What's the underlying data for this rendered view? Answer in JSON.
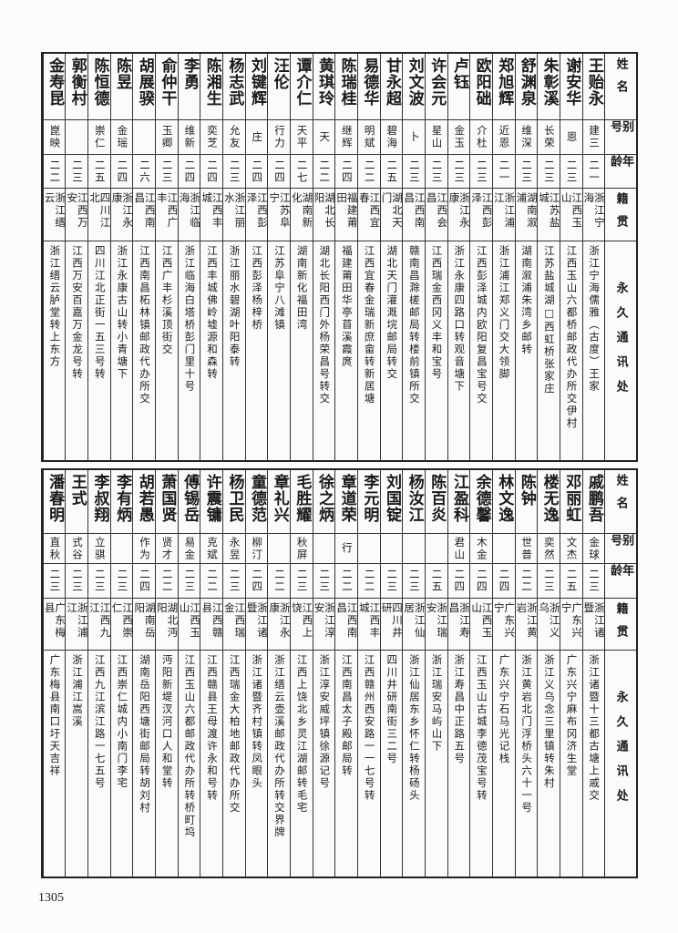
{
  "headers": {
    "name": "姓名",
    "alias": "别号",
    "age": "年龄",
    "native": "籍贯",
    "address": "永久通讯处"
  },
  "page_number": "1305",
  "tables": [
    {
      "rows": [
        {
          "name": "王贻永",
          "alias": "建三",
          "age": "二一",
          "native": "浙江宁海",
          "address": "浙江宁海儒雅（古度）王家"
        },
        {
          "name": "谢安华",
          "alias": "恩",
          "age": "二三",
          "native": "江西玉山",
          "address": "江西玉山六都桥邮政代办所交伊村"
        },
        {
          "name": "朱彰溪",
          "alias": "长荣",
          "age": "二三",
          "native": "江苏盐城",
          "address": "江苏盐城湖□西虹桥张家庄"
        },
        {
          "name": "舒渊泉",
          "alias": "维深",
          "age": "二三",
          "native": "湖南溆浦",
          "address": "湖南溆浦朱湾乡邮转"
        },
        {
          "name": "郑旭辉",
          "alias": "近恩",
          "age": "二一",
          "native": "浙江浦江",
          "address": "浙江浦江郑义门交大领脚"
        },
        {
          "name": "欧阳础",
          "alias": "介杜",
          "age": "二三",
          "native": "江西彭泽",
          "address": "江西彭泽城内欧阳复昌宝号交"
        },
        {
          "name": "卢钰",
          "alias": "金玉",
          "age": "二三",
          "native": "浙江永康",
          "address": "浙江永康四路口转观音塘下"
        },
        {
          "name": "许会元",
          "alias": "星山",
          "age": "二三",
          "native": "江西会昌",
          "address": "江西瑞金西冈义丰和宝号"
        },
        {
          "name": "刘文波",
          "alias": "卜",
          "age": "二三",
          "native": "江西南昌",
          "address": "赣南昌滁槎邮局转楼前镇所交"
        },
        {
          "name": "甘永超",
          "alias": "碧海",
          "age": "二五",
          "native": "湖北天门",
          "address": "湖北天门灌溉垸邮局转交"
        },
        {
          "name": "易德华",
          "alias": "明斌",
          "age": "二二",
          "native": "江西宜春",
          "address": "江西宜春金瑞新庶畲转新居塘"
        },
        {
          "name": "陈瑞桂",
          "alias": "继辉",
          "age": "二四",
          "native": "福建莆田",
          "address": "福建莆田华亭苜溪霞庹"
        },
        {
          "name": "黄琪玲",
          "alias": "天",
          "age": "二二",
          "native": "湖北长阳",
          "address": "湖北长阳西门外杨荣昌号转交"
        },
        {
          "name": "谭介仁",
          "alias": "天平",
          "age": "二七",
          "native": "湖南新化",
          "address": "湖南新化福田湾"
        },
        {
          "name": "汪伦",
          "alias": "行力",
          "age": "二四",
          "native": "江苏阜宁",
          "address": "江苏阜宁八滩镇"
        },
        {
          "name": "刘键辉",
          "alias": "庄",
          "age": "二四",
          "native": "江西彭泽",
          "address": "江西彭泽杨梓桥"
        },
        {
          "name": "杨志武",
          "alias": "允友",
          "age": "二三",
          "native": "浙江丽水",
          "address": "浙江丽水碧湖叶阳泰转"
        },
        {
          "name": "陈湘生",
          "alias": "奕芝",
          "age": "二四",
          "native": "江西丰城",
          "address": "江西丰城佛岭墟源和森转"
        },
        {
          "name": "李勇",
          "alias": "维新",
          "age": "二四",
          "native": "浙江临海",
          "address": "浙江临海白塔桥彭门里十号"
        },
        {
          "name": "俞仲干",
          "alias": "玉卿",
          "age": "二三",
          "native": "江西广丰",
          "address": "江西广丰杉溪顶街交"
        },
        {
          "name": "胡展骙",
          "alias": "",
          "age": "二六",
          "native": "江西南昌",
          "address": "江西南昌柘林镇邮政代办所交"
        },
        {
          "name": "陈昱",
          "alias": "金瑶",
          "age": "二四",
          "native": "浙江永康",
          "address": "浙江永康古山转小青塘下"
        },
        {
          "name": "陈恒德",
          "alias": "崇仁",
          "age": "二五",
          "native": "四川江北",
          "address": "四川江北正街一五三号转"
        },
        {
          "name": "郭衡村",
          "alias": "",
          "age": "二三",
          "native": "江西万安",
          "address": "江西万安百嘉万金龙号转"
        },
        {
          "name": "金寿昆",
          "alias": "崑映",
          "age": "二二",
          "native": "浙江缙云",
          "address": "浙江缙云胪堂转上东方"
        }
      ]
    },
    {
      "rows": [
        {
          "name": "戚鹏吾",
          "alias": "金球",
          "age": "二三",
          "native": "浙江诸暨",
          "address": "浙江诸暨十三都古塘上戚交"
        },
        {
          "name": "邓丽虹",
          "alias": "文杰",
          "age": "二五",
          "native": "广东兴宁",
          "address": "广东兴宁麻布冈济生堂"
        },
        {
          "name": "楼无逸",
          "alias": "奕然",
          "age": "二三",
          "native": "浙江义乌",
          "address": "浙江义乌念三里镇转朱村"
        },
        {
          "name": "陈钟",
          "alias": "世普",
          "age": "二二",
          "native": "浙江黄岩",
          "address": "浙江黄岩北门浮桥头六十一号"
        },
        {
          "name": "林文逸",
          "alias": "",
          "age": "二四",
          "native": "广东兴宁",
          "address": "广东兴宁石马光记栈"
        },
        {
          "name": "余德馨",
          "alias": "木金",
          "age": "二四",
          "native": "江西玉山",
          "address": "江西玉山古城李德茂宝号转"
        },
        {
          "name": "江盈科",
          "alias": "君山",
          "age": "二四",
          "native": "浙江寿昌",
          "address": "浙江寿昌中正路五号"
        },
        {
          "name": "陈百炎",
          "alias": "",
          "age": "二五",
          "native": "浙江瑞安",
          "address": "浙江瑞安马屿山下"
        },
        {
          "name": "杨汝江",
          "alias": "",
          "age": "二三",
          "native": "浙江仙居",
          "address": "浙江仙居东乡怀仁转杨砀头"
        },
        {
          "name": "刘国锭",
          "alias": "",
          "age": "二三",
          "native": "四川井研",
          "address": "四川井研南街三二号"
        },
        {
          "name": "李元明",
          "alias": "",
          "age": "二二",
          "native": "江西丰城",
          "address": "江西赣州西安路一一七号转"
        },
        {
          "name": "章道荣",
          "alias": "行",
          "age": "二二",
          "native": "江西南昌",
          "address": "江西南昌太子殿邮局转"
        },
        {
          "name": "徐之炳",
          "alias": "",
          "age": "二三",
          "native": "浙江淳安",
          "address": "浙江淳安威坪镇徐源记号"
        },
        {
          "name": "毛胜耀",
          "alias": "秋屏",
          "age": "二三",
          "native": "江西上饶",
          "address": "江西上饶北乡灵江湖邮转毛宅"
        },
        {
          "name": "章礼兴",
          "alias": "",
          "age": "二二",
          "native": "浙江永康",
          "address": "浙江缙云壶溪邮政代办所转交界牌"
        },
        {
          "name": "童德范",
          "alias": "柳汀",
          "age": "二四",
          "native": "浙江诸暨",
          "address": "浙江诸暨齐村镇转凤眼头"
        },
        {
          "name": "杨卫民",
          "alias": "永昱",
          "age": "二三",
          "native": "江西瑞金",
          "address": "江西瑞金大柏地邮政代办所交"
        },
        {
          "name": "许震镛",
          "alias": "克斌",
          "age": "二二",
          "native": "江西赣县",
          "address": "江西赣县王母渡许永和号转"
        },
        {
          "name": "傅锡岳",
          "alias": "易金",
          "age": "二三",
          "native": "江西玉山",
          "address": "江西玉山六都邮政代办所转桥町坞"
        },
        {
          "name": "萧国贤",
          "alias": "贤才",
          "age": "二二",
          "native": "湖北沔阳",
          "address": "沔阳新堤汊河口人和堂转"
        },
        {
          "name": "胡若愚",
          "alias": "作为",
          "age": "二四",
          "native": "湖南岳阳",
          "address": "湖南岳阳西塘街邮局转胡刘村"
        },
        {
          "name": "李有炳",
          "alias": "",
          "age": "二三",
          "native": "江西崇仁",
          "address": "江西崇仁城内小南门李宅"
        },
        {
          "name": "李叔翔",
          "alias": "立骐",
          "age": "二三",
          "native": "江西九江",
          "address": "江西九江滨江路一七五号"
        },
        {
          "name": "王式",
          "alias": "式谷",
          "age": "二三",
          "native": "浙江浦江",
          "address": "浙江浦江嵩溪"
        },
        {
          "name": "潘春明",
          "alias": "直秋",
          "age": "二三",
          "native": "广东梅县",
          "address": "广东梅县南口圩天吉祥"
        }
      ]
    }
  ]
}
